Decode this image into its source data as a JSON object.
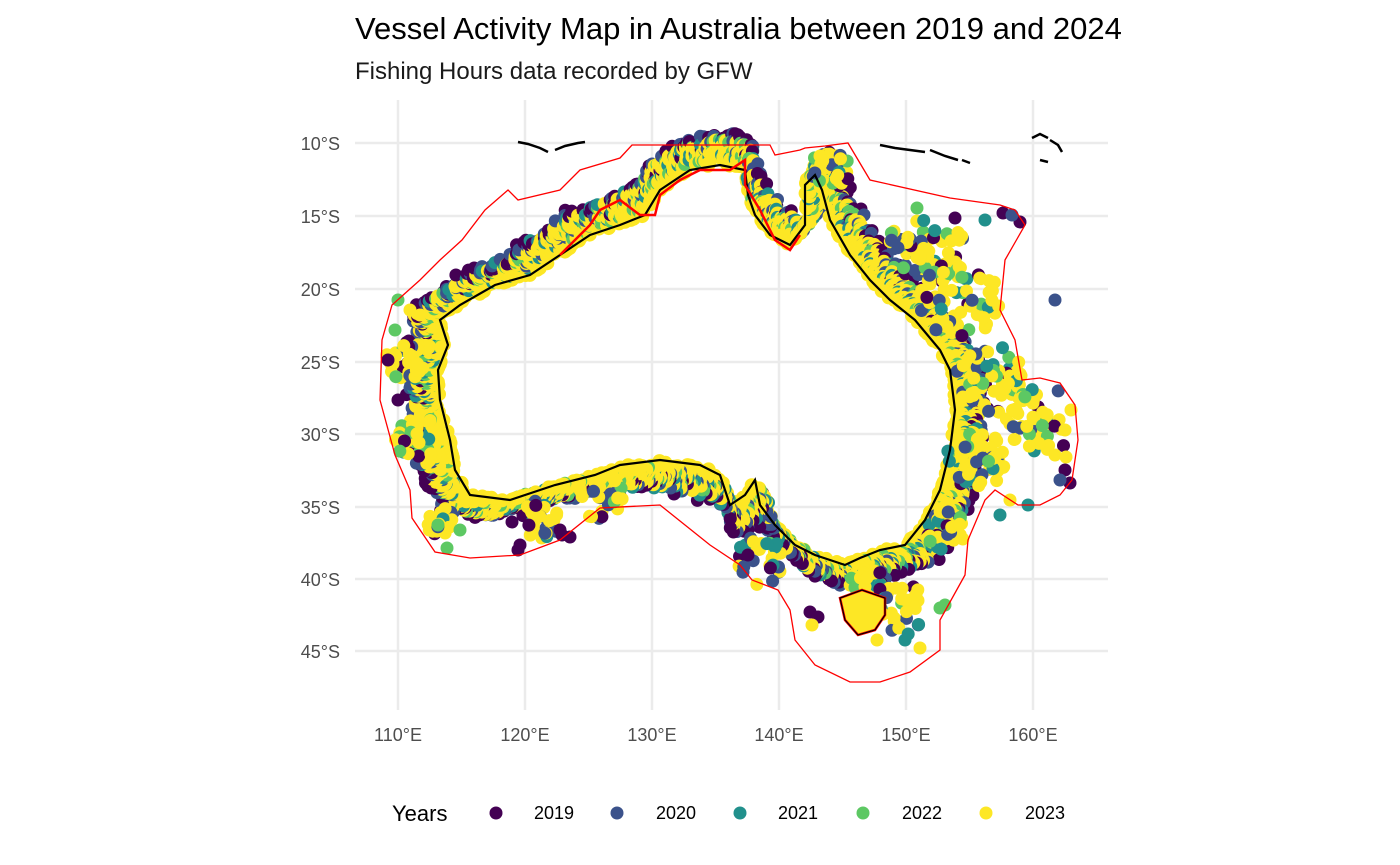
{
  "title": "Vessel Activity Map in Australia between 2019 and 2024",
  "subtitle": "Fishing Hours data recorded by GFW",
  "axes": {
    "y_ticks": [
      "10°S",
      "15°S",
      "20°S",
      "25°S",
      "30°S",
      "35°S",
      "40°S",
      "45°S"
    ],
    "x_ticks": [
      "110°E",
      "120°E",
      "130°E",
      "140°E",
      "150°E",
      "160°E"
    ],
    "grid": true
  },
  "legend": {
    "title": "Years",
    "placement": "bottom",
    "items": [
      {
        "label": "2019",
        "color": "#440154"
      },
      {
        "label": "2020",
        "color": "#3B528B"
      },
      {
        "label": "2021",
        "color": "#21908C"
      },
      {
        "label": "2022",
        "color": "#5DC863"
      },
      {
        "label": "2023",
        "color": "#FDE725"
      }
    ]
  },
  "colors": {
    "eez_boundary": "#FF0000",
    "coastline": "#000000",
    "grid": "#EBEBEB"
  },
  "chart_data": {
    "type": "scatter",
    "title": "Vessel Activity Map in Australia between 2019 and 2024",
    "subtitle": "Fishing Hours data recorded by GFW",
    "x_ticks": [
      110,
      120,
      130,
      140,
      150,
      160
    ],
    "y_ticks": [
      -10,
      -15,
      -20,
      -25,
      -30,
      -35,
      -40,
      -45
    ],
    "legend_title": "Years",
    "series": [
      {
        "name": "2019",
        "color": "#440154"
      },
      {
        "name": "2020",
        "color": "#3B528B"
      },
      {
        "name": "2021",
        "color": "#21908C"
      },
      {
        "name": "2022",
        "color": "#5DC863"
      },
      {
        "name": "2023",
        "color": "#FDE725"
      }
    ]
  }
}
